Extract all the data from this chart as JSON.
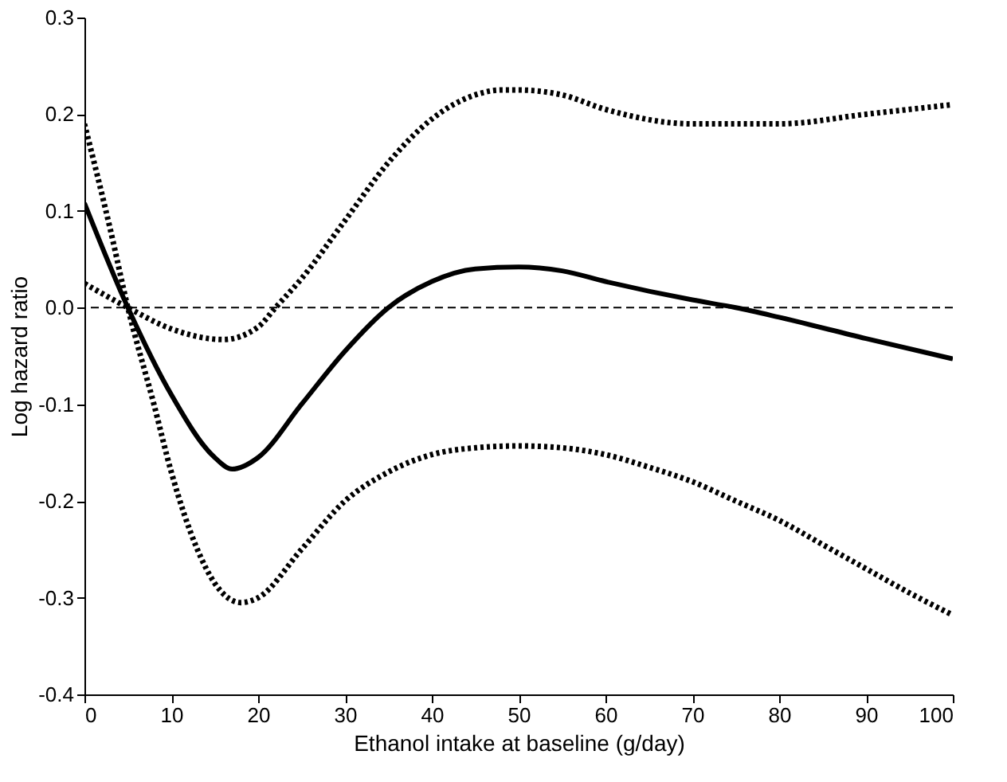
{
  "chart_data": {
    "type": "line",
    "xlabel": "Ethanol intake at baseline (g/day)",
    "ylabel": "Log hazard ratio",
    "xlim": [
      0,
      100
    ],
    "xticks": [
      0,
      10,
      20,
      30,
      40,
      50,
      60,
      70,
      80,
      90,
      100
    ],
    "ylim": [
      -0.4,
      0.3
    ],
    "yticks": [
      {
        "value": -0.4,
        "label": "-0.4"
      },
      {
        "value": -0.3,
        "label": "-0.3"
      },
      {
        "value": -0.2,
        "label": "-0.2"
      },
      {
        "value": -0.1,
        "label": "-0.1"
      },
      {
        "value": 0,
        "label": "0.0"
      },
      {
        "value": 0.1,
        "label": "0.1"
      },
      {
        "value": 0.2,
        "label": "0.2"
      },
      {
        "value": 0.3,
        "label": "0.3"
      }
    ],
    "grid": false,
    "ref_lines": [
      {
        "axis": "y",
        "value": 0,
        "line_style": "dashed",
        "color": "#000000"
      }
    ],
    "series": [
      {
        "color": "#000000",
        "line_style": "solid",
        "x": [
          0,
          5,
          10,
          15,
          17,
          20,
          25,
          30,
          35,
          40,
          45,
          50,
          55,
          60,
          70,
          75,
          80,
          90,
          100
        ],
        "values": [
          0.108,
          0.0,
          -0.09,
          -0.155,
          -0.167,
          -0.155,
          -0.1,
          -0.045,
          0.0,
          0.027,
          0.04,
          0.042,
          0.038,
          0.027,
          0.008,
          0.0,
          -0.01,
          -0.032,
          -0.053
        ]
      },
      {
        "color": "#000000",
        "line_style": "dotted",
        "x": [
          0,
          5,
          10,
          16,
          20,
          22,
          25,
          30,
          35,
          40,
          45,
          48,
          50,
          55,
          60,
          70,
          75,
          80,
          90,
          100
        ],
        "values": [
          0.025,
          0.0,
          -0.022,
          -0.033,
          -0.02,
          0.0,
          0.03,
          0.09,
          0.15,
          0.195,
          0.22,
          0.225,
          0.225,
          0.22,
          0.205,
          0.19,
          0.19,
          0.19,
          0.2,
          0.21
        ]
      },
      {
        "color": "#000000",
        "line_style": "dotted",
        "x": [
          0,
          3,
          5,
          8,
          10,
          13,
          15,
          18,
          20,
          25,
          30,
          35,
          40,
          45,
          50,
          55,
          60,
          65,
          70,
          75,
          80,
          85,
          90,
          95,
          100
        ],
        "values": [
          0.19,
          0.08,
          0.0,
          -0.1,
          -0.17,
          -0.25,
          -0.285,
          -0.305,
          -0.3,
          -0.25,
          -0.2,
          -0.17,
          -0.152,
          -0.145,
          -0.143,
          -0.145,
          -0.152,
          -0.165,
          -0.18,
          -0.2,
          -0.22,
          -0.245,
          -0.27,
          -0.295,
          -0.318
        ]
      }
    ]
  }
}
